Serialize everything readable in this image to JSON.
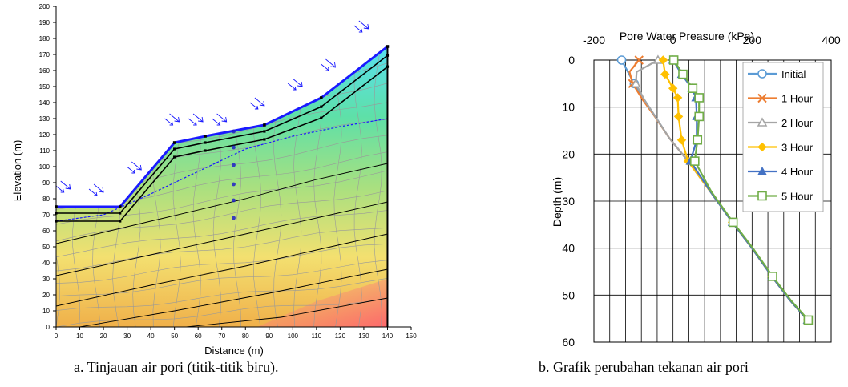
{
  "captions": {
    "a": "a. Tinjauan air pori (titik-titik biru).",
    "b": "b. Grafik perubahan tekanan air pori"
  },
  "chart_data": [
    {
      "type": "contour",
      "xlabel": "Distance (m)",
      "ylabel": "Elevation (m)",
      "xlim": [
        0,
        150
      ],
      "ylim": [
        0,
        200
      ],
      "xticks": [
        0,
        10,
        20,
        30,
        40,
        50,
        60,
        70,
        80,
        90,
        100,
        110,
        120,
        130,
        140,
        150
      ],
      "yticks": [
        0,
        10,
        20,
        30,
        40,
        50,
        60,
        70,
        80,
        90,
        100,
        110,
        120,
        130,
        140,
        150,
        160,
        170,
        180,
        190,
        200
      ],
      "ground_surface": [
        [
          0,
          75
        ],
        [
          27,
          75
        ],
        [
          50,
          115
        ],
        [
          63,
          119
        ],
        [
          88,
          126
        ],
        [
          112,
          143
        ],
        [
          140,
          175
        ]
      ],
      "water_table": [
        [
          0,
          66
        ],
        [
          20,
          70
        ],
        [
          40,
          83
        ],
        [
          60,
          97
        ],
        [
          80,
          111
        ],
        [
          100,
          119
        ],
        [
          120,
          125
        ],
        [
          140,
          130
        ]
      ],
      "contour_boundaries": [
        [
          [
            0,
            52
          ],
          [
            40,
            66
          ],
          [
            80,
            80
          ],
          [
            110,
            92
          ],
          [
            140,
            102
          ]
        ],
        [
          [
            0,
            32
          ],
          [
            40,
            45
          ],
          [
            80,
            58
          ],
          [
            110,
            68
          ],
          [
            140,
            78
          ]
        ],
        [
          [
            0,
            13
          ],
          [
            40,
            26
          ],
          [
            80,
            38
          ],
          [
            110,
            48
          ],
          [
            140,
            58
          ]
        ],
        [
          [
            10,
            0
          ],
          [
            50,
            10
          ],
          [
            90,
            21
          ],
          [
            140,
            36
          ]
        ],
        [
          [
            55,
            0
          ],
          [
            95,
            6
          ],
          [
            140,
            18
          ]
        ]
      ],
      "observation_points": [
        [
          75,
          68
        ],
        [
          75,
          79
        ],
        [
          75,
          89
        ],
        [
          75,
          101
        ],
        [
          75,
          112
        ],
        [
          75,
          122
        ]
      ],
      "colors": {
        "frame": "#000000",
        "mesh": "#999999",
        "surface": "#1a1aff",
        "points": "#2020c8"
      }
    },
    {
      "type": "line",
      "title": "Pore Water Preasure (kPa)",
      "xlabel": "",
      "ylabel": "Depth (m)",
      "xlim": [
        -200,
        400
      ],
      "ylim": [
        0,
        60
      ],
      "y_inverted": true,
      "x_axis_position": "top",
      "xticks": [
        -200,
        0,
        200,
        400
      ],
      "yticks": [
        0,
        10,
        20,
        30,
        40,
        50,
        60
      ],
      "grid": true,
      "legend": "top-right",
      "series": [
        {
          "name": "Initial",
          "color": "#5b9bd5",
          "marker": "circle",
          "points": [
            [
              -130,
              0
            ],
            [
              -114,
              2.5
            ],
            [
              -98,
              5
            ],
            [
              -72,
              8.5
            ],
            [
              -45,
              12
            ],
            [
              -10,
              16.5
            ],
            [
              38,
              21.5
            ],
            [
              95,
              28
            ],
            [
              150,
              34.5
            ],
            [
              200,
              40
            ],
            [
              250,
              46
            ],
            [
              295,
              51
            ],
            [
              340,
              55.3
            ]
          ]
        },
        {
          "name": "1 Hour",
          "color": "#ed7d31",
          "marker": "x",
          "points": [
            [
              -86,
              0
            ],
            [
              -110,
              2.5
            ],
            [
              -102,
              5
            ],
            [
              -76,
              8.5
            ],
            [
              -46,
              12
            ],
            [
              -10,
              16.5
            ],
            [
              38,
              21.5
            ],
            [
              95,
              28
            ],
            [
              150,
              34.5
            ],
            [
              200,
              40
            ],
            [
              250,
              46
            ],
            [
              295,
              51
            ],
            [
              340,
              55.3
            ]
          ]
        },
        {
          "name": "2 Hour",
          "color": "#a5a5a5",
          "marker": "triangle-open",
          "points": [
            [
              -38,
              0
            ],
            [
              -92,
              2.5
            ],
            [
              -94,
              5
            ],
            [
              -72,
              8.5
            ],
            [
              -45,
              12
            ],
            [
              -10,
              16.5
            ],
            [
              38,
              21.5
            ],
            [
              95,
              28
            ],
            [
              150,
              34.5
            ],
            [
              200,
              40
            ],
            [
              250,
              46
            ],
            [
              295,
              51
            ],
            [
              340,
              55.3
            ]
          ]
        },
        {
          "name": "3 Hour",
          "color": "#ffc000",
          "marker": "diamond",
          "points": [
            [
              -25,
              0
            ],
            [
              -20,
              3
            ],
            [
              0,
              6
            ],
            [
              12,
              8
            ],
            [
              14,
              12
            ],
            [
              22,
              17
            ],
            [
              38,
              21.5
            ],
            [
              95,
              28
            ],
            [
              150,
              34.5
            ],
            [
              200,
              40
            ],
            [
              250,
              46
            ],
            [
              295,
              51
            ],
            [
              340,
              55.3
            ]
          ]
        },
        {
          "name": "4 Hour",
          "color": "#4472c4",
          "marker": "triangle",
          "points": [
            [
              0,
              0
            ],
            [
              22,
              3
            ],
            [
              48,
              6
            ],
            [
              58,
              8
            ],
            [
              60,
              12
            ],
            [
              60,
              17
            ],
            [
              44,
              21.5
            ],
            [
              95,
              28
            ],
            [
              150,
              34.5
            ],
            [
              200,
              40
            ],
            [
              250,
              46
            ],
            [
              295,
              51
            ],
            [
              340,
              55.3
            ]
          ]
        },
        {
          "name": "5 Hour",
          "color": "#70ad47",
          "marker": "square-open",
          "points": [
            [
              2,
              0
            ],
            [
              25,
              3
            ],
            [
              50,
              6
            ],
            [
              66,
              8
            ],
            [
              66,
              12
            ],
            [
              62,
              17
            ],
            [
              55,
              21.5
            ],
            [
              97,
              28
            ],
            [
              152,
              34.5
            ],
            [
              202,
              40
            ],
            [
              252,
              46
            ],
            [
              297,
              51
            ],
            [
              342,
              55.3
            ]
          ]
        }
      ]
    }
  ]
}
